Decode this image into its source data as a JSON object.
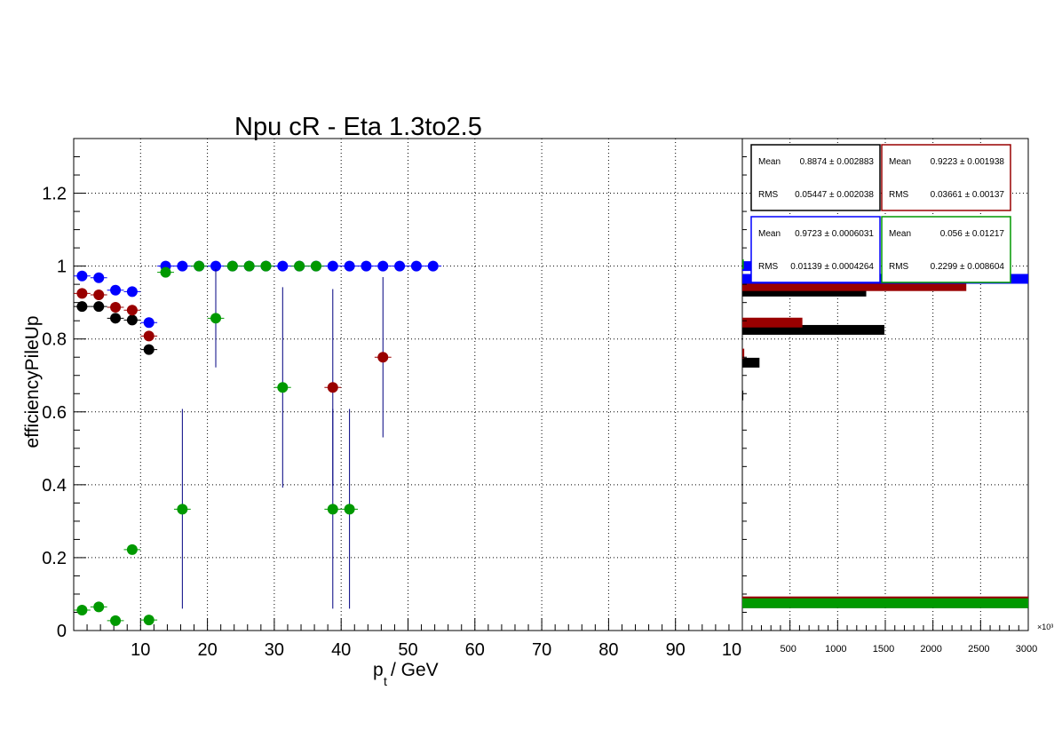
{
  "chart_data": [
    {
      "type": "scatter",
      "title": "Npu cR - Eta 1.3to2.5",
      "xlabel_main": "p",
      "xlabel_sub": "t",
      "xlabel_rest": " / GeV",
      "ylabel": "efficiencyPileUp",
      "xlim": [
        0,
        100
      ],
      "ylim": [
        0,
        1.35
      ],
      "x_ticks": [
        "10",
        "20",
        "30",
        "40",
        "50",
        "60",
        "70",
        "80",
        "90",
        "10"
      ],
      "y_ticks": [
        "0",
        "0.2",
        "0.4",
        "0.6",
        "0.8",
        "1",
        "1.2"
      ],
      "grid": true,
      "series": [
        {
          "name": "black",
          "color": "#000000",
          "points": [
            {
              "x": 1.25,
              "y": 0.889,
              "err": 0
            },
            {
              "x": 3.75,
              "y": 0.889,
              "err": 0
            },
            {
              "x": 6.25,
              "y": 0.857,
              "err": 0
            },
            {
              "x": 8.75,
              "y": 0.852,
              "err": 0
            },
            {
              "x": 11.25,
              "y": 0.771,
              "err": 0
            }
          ]
        },
        {
          "name": "darkred",
          "color": "#990000",
          "points": [
            {
              "x": 1.25,
              "y": 0.925,
              "err": 0
            },
            {
              "x": 3.75,
              "y": 0.921,
              "err": 0
            },
            {
              "x": 6.25,
              "y": 0.887,
              "err": 0
            },
            {
              "x": 8.75,
              "y": 0.879,
              "err": 0
            },
            {
              "x": 11.25,
              "y": 0.808,
              "err": 0
            },
            {
              "x": 38.75,
              "y": 0.667,
              "err": 0.27
            },
            {
              "x": 46.25,
              "y": 0.75,
              "err": 0.22
            }
          ]
        },
        {
          "name": "blue",
          "color": "#0000ff",
          "points": [
            {
              "x": 1.25,
              "y": 0.973,
              "err": 0
            },
            {
              "x": 3.75,
              "y": 0.968,
              "err": 0
            },
            {
              "x": 6.25,
              "y": 0.934,
              "err": 0
            },
            {
              "x": 8.75,
              "y": 0.93,
              "err": 0
            },
            {
              "x": 11.25,
              "y": 0.845,
              "err": 0
            },
            {
              "x": 13.75,
              "y": 1.0,
              "err": 0
            },
            {
              "x": 16.25,
              "y": 1.0,
              "err": 0
            },
            {
              "x": 18.75,
              "y": 1.0,
              "err": 0
            },
            {
              "x": 21.25,
              "y": 1.0,
              "err": 0
            },
            {
              "x": 23.75,
              "y": 1.0,
              "err": 0
            },
            {
              "x": 26.25,
              "y": 1.0,
              "err": 0
            },
            {
              "x": 28.75,
              "y": 1.0,
              "err": 0
            },
            {
              "x": 31.25,
              "y": 1.0,
              "err": 0
            },
            {
              "x": 33.75,
              "y": 1.0,
              "err": 0
            },
            {
              "x": 36.25,
              "y": 1.0,
              "err": 0
            },
            {
              "x": 38.75,
              "y": 1.0,
              "err": 0
            },
            {
              "x": 41.25,
              "y": 1.0,
              "err": 0
            },
            {
              "x": 43.75,
              "y": 1.0,
              "err": 0
            },
            {
              "x": 46.25,
              "y": 1.0,
              "err": 0
            },
            {
              "x": 48.75,
              "y": 1.0,
              "err": 0
            },
            {
              "x": 51.25,
              "y": 1.0,
              "err": 0
            },
            {
              "x": 53.75,
              "y": 1.0,
              "err": 0
            }
          ]
        },
        {
          "name": "green",
          "color": "#009900",
          "points": [
            {
              "x": 1.25,
              "y": 0.056,
              "err": 0
            },
            {
              "x": 3.75,
              "y": 0.065,
              "err": 0
            },
            {
              "x": 6.25,
              "y": 0.027,
              "err": 0
            },
            {
              "x": 8.75,
              "y": 0.222,
              "err": 0
            },
            {
              "x": 11.25,
              "y": 0.029,
              "err": 0
            },
            {
              "x": 13.75,
              "y": 0.983,
              "err": 0
            },
            {
              "x": 16.25,
              "y": 0.333,
              "err": 0.275
            },
            {
              "x": 18.75,
              "y": 1.0,
              "err": 0
            },
            {
              "x": 21.25,
              "y": 0.857,
              "err": 0.135
            },
            {
              "x": 23.75,
              "y": 1.0,
              "err": 0
            },
            {
              "x": 26.25,
              "y": 1.0,
              "err": 0
            },
            {
              "x": 28.75,
              "y": 1.0,
              "err": 0
            },
            {
              "x": 31.25,
              "y": 0.667,
              "err": 0.275
            },
            {
              "x": 33.75,
              "y": 1.0,
              "err": 0
            },
            {
              "x": 36.25,
              "y": 1.0,
              "err": 0
            },
            {
              "x": 38.75,
              "y": 0.333,
              "err": 0.275
            },
            {
              "x": 41.25,
              "y": 0.333,
              "err": 0.275
            }
          ]
        }
      ]
    },
    {
      "type": "bar",
      "orientation": "horizontal",
      "xlim": [
        0,
        3000
      ],
      "x_ticks": [
        "500",
        "1000",
        "1500",
        "2000",
        "2500",
        "3000"
      ],
      "x_exponent": "×10³",
      "y_shared_with": "main",
      "series": [
        {
          "name": "black",
          "color": "#000000",
          "bars": [
            {
              "y": 0.93,
              "value": 1300
            },
            {
              "y": 0.825,
              "value": 1490
            },
            {
              "y": 0.735,
              "value": 180
            },
            {
              "y": 0.645,
              "value": 10
            },
            {
              "y": 0.075,
              "value": 3000
            }
          ]
        },
        {
          "name": "darkred",
          "color": "#990000",
          "bars": [
            {
              "y": 0.945,
              "value": 2350
            },
            {
              "y": 0.845,
              "value": 630
            },
            {
              "y": 0.76,
              "value": 20
            },
            {
              "y": 0.08,
              "value": 3000
            }
          ]
        },
        {
          "name": "blue",
          "color": "#0000ff",
          "bars": [
            {
              "y": 1.0,
              "value": 120
            },
            {
              "y": 0.965,
              "value": 3000
            }
          ]
        },
        {
          "name": "green",
          "color": "#009900",
          "bars": [
            {
              "y": 1.005,
              "value": 15
            },
            {
              "y": 0.075,
              "value": 3000
            }
          ]
        }
      ]
    }
  ],
  "stats": [
    {
      "color": "#000000",
      "mean_label": "Mean",
      "mean": "0.8874 ± 0.002883",
      "rms_label": "RMS",
      "rms": "0.05447 ± 0.002038"
    },
    {
      "color": "#990000",
      "mean_label": "Mean",
      "mean": "0.9223 ± 0.001938",
      "rms_label": "RMS",
      "rms": "0.03661 ± 0.00137"
    },
    {
      "color": "#0000ff",
      "mean_label": "Mean",
      "mean": "0.9723 ± 0.0006031",
      "rms_label": "RMS",
      "rms": "0.01139 ± 0.0004264"
    },
    {
      "color": "#009900",
      "mean_label": "Mean",
      "mean": "0.056 ± 0.01217",
      "rms_label": "RMS",
      "rms": "0.2299 ± 0.008604"
    }
  ]
}
